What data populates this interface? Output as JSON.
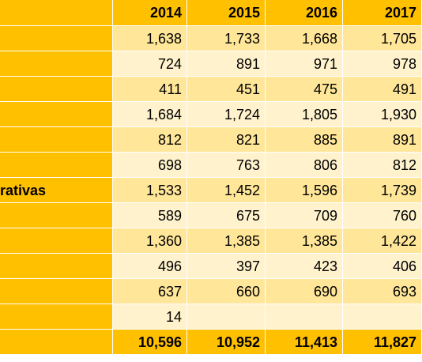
{
  "table": {
    "header": [
      "2014",
      "2015",
      "2016",
      "2017"
    ],
    "rows": [
      {
        "cells": [
          "1,638",
          "1,733",
          "1,668",
          "1,705"
        ]
      },
      {
        "cells": [
          "724",
          "891",
          "971",
          "978"
        ]
      },
      {
        "cells": [
          "411",
          "451",
          "475",
          "491"
        ]
      },
      {
        "cells": [
          "1,684",
          "1,724",
          "1,805",
          "1,930"
        ]
      },
      {
        "cells": [
          "812",
          "821",
          "885",
          "891"
        ]
      },
      {
        "cells": [
          "698",
          "763",
          "806",
          "812"
        ]
      },
      {
        "label": "rativas",
        "cells": [
          "1,533",
          "1,452",
          "1,596",
          "1,739"
        ]
      },
      {
        "cells": [
          "589",
          "675",
          "709",
          "760"
        ]
      },
      {
        "cells": [
          "1,360",
          "1,385",
          "1,385",
          "1,422"
        ]
      },
      {
        "cells": [
          "496",
          "397",
          "423",
          "406"
        ]
      },
      {
        "cells": [
          "637",
          "660",
          "690",
          "693"
        ]
      },
      {
        "cells": [
          "14"
        ]
      }
    ],
    "total": [
      "10,596",
      "10,952",
      "11,413",
      "11,827"
    ]
  }
}
